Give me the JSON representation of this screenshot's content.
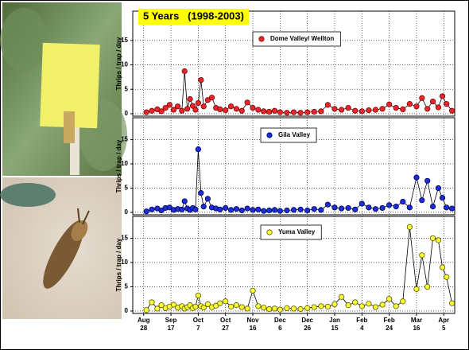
{
  "chart_data": [
    {
      "type": "line",
      "title": "5 Years   (1998-2003)",
      "ylabel": "Thrips / trap / day",
      "xlim": [
        -8,
        228
      ],
      "ylim": [
        -0.5,
        21
      ],
      "yticks": [
        0,
        5,
        10,
        15
      ],
      "grid": true,
      "series": [
        {
          "name": "Dome Valley/ Wellton",
          "color": "#e8262b",
          "edgecolor": "#7a0000",
          "x": [
            2,
            6,
            10,
            13,
            16,
            19,
            22,
            25,
            28,
            30,
            32,
            34,
            36,
            38,
            40,
            42,
            44,
            47,
            50,
            53,
            56,
            60,
            64,
            68,
            72,
            76,
            80,
            84,
            88,
            92,
            96,
            100,
            105,
            110,
            115,
            120,
            125,
            130,
            135,
            140,
            145,
            150,
            155,
            160,
            165,
            170,
            175,
            180,
            185,
            190,
            195,
            200,
            204,
            208,
            212,
            216,
            219,
            222,
            226
          ],
          "values": [
            0.3,
            0.6,
            0.9,
            0.5,
            1.2,
            1.8,
            0.8,
            1.5,
            0.6,
            8.7,
            1.0,
            3.0,
            1.6,
            0.8,
            2.2,
            6.9,
            1.5,
            2.8,
            3.3,
            1.2,
            0.9,
            0.7,
            1.5,
            1.0,
            0.6,
            2.3,
            1.2,
            0.8,
            0.5,
            0.4,
            0.6,
            0.3,
            0.2,
            0.3,
            0.2,
            0.3,
            0.4,
            0.5,
            1.8,
            1.0,
            0.8,
            1.2,
            0.6,
            0.5,
            0.7,
            0.8,
            1.0,
            1.9,
            1.2,
            0.9,
            2.0,
            1.5,
            3.2,
            1.0,
            2.5,
            1.3,
            3.6,
            2.0,
            0.6
          ]
        }
      ]
    },
    {
      "type": "line",
      "ylabel": "Thrips / trap / day",
      "xlim": [
        -8,
        228
      ],
      "ylim": [
        -0.5,
        19.5
      ],
      "yticks": [
        0,
        5,
        10,
        15
      ],
      "grid": true,
      "series": [
        {
          "name": "Gila Valley",
          "color": "#1a2fd6",
          "edgecolor": "#00005a",
          "x": [
            2,
            6,
            10,
            13,
            16,
            19,
            22,
            25,
            28,
            30,
            32,
            34,
            36,
            38,
            40,
            42,
            44,
            47,
            50,
            53,
            56,
            60,
            64,
            68,
            72,
            76,
            80,
            84,
            88,
            92,
            96,
            100,
            105,
            110,
            115,
            120,
            125,
            130,
            135,
            140,
            145,
            150,
            155,
            160,
            165,
            170,
            175,
            180,
            185,
            190,
            195,
            200,
            204,
            208,
            212,
            216,
            219,
            222,
            226
          ],
          "values": [
            0.2,
            0.6,
            0.8,
            0.4,
            0.9,
            1.0,
            0.5,
            0.7,
            0.6,
            2.3,
            0.8,
            0.5,
            0.9,
            0.6,
            13.0,
            4.0,
            1.2,
            2.8,
            1.0,
            0.8,
            0.6,
            0.9,
            0.5,
            0.7,
            0.4,
            0.8,
            0.5,
            0.6,
            0.3,
            0.4,
            0.5,
            0.3,
            0.4,
            0.5,
            0.6,
            0.4,
            0.7,
            0.5,
            1.6,
            1.0,
            0.8,
            0.9,
            0.6,
            1.8,
            1.0,
            0.7,
            0.9,
            1.5,
            1.2,
            2.2,
            1.0,
            7.2,
            2.5,
            6.5,
            1.2,
            5.0,
            3.0,
            1.0,
            0.8
          ]
        }
      ]
    },
    {
      "type": "line",
      "ylabel": "Thrips / trap / day",
      "xlim": [
        -8,
        228
      ],
      "ylim": [
        -0.5,
        19.5
      ],
      "yticks": [
        0,
        5,
        10,
        15
      ],
      "grid": true,
      "xticks": [
        {
          "value": 0,
          "label": "Aug 28"
        },
        {
          "value": 20,
          "label": "Sep 17"
        },
        {
          "value": 40,
          "label": "Oct 7"
        },
        {
          "value": 60,
          "label": "Oct 27"
        },
        {
          "value": 80,
          "label": "Nov 16"
        },
        {
          "value": 100,
          "label": "Dec 6"
        },
        {
          "value": 120,
          "label": "Dec 26"
        },
        {
          "value": 140,
          "label": "Jan 15"
        },
        {
          "value": 160,
          "label": "Feb 4"
        },
        {
          "value": 180,
          "label": "Feb 24"
        },
        {
          "value": 200,
          "label": "Mar 16"
        },
        {
          "value": 220,
          "label": "Apr 5"
        }
      ],
      "series": [
        {
          "name": "Yuma Valley",
          "color": "#ffff33",
          "edgecolor": "#555500",
          "x": [
            2,
            6,
            10,
            13,
            16,
            19,
            22,
            25,
            28,
            30,
            32,
            34,
            36,
            38,
            40,
            42,
            44,
            47,
            50,
            53,
            56,
            60,
            64,
            68,
            72,
            76,
            80,
            84,
            88,
            92,
            96,
            100,
            105,
            110,
            115,
            120,
            125,
            130,
            135,
            140,
            145,
            150,
            155,
            160,
            165,
            170,
            175,
            180,
            185,
            190,
            195,
            200,
            204,
            208,
            212,
            216,
            219,
            222,
            226
          ],
          "values": [
            0.2,
            1.8,
            0.5,
            1.2,
            0.6,
            0.9,
            1.3,
            0.7,
            1.0,
            0.5,
            0.8,
            1.2,
            0.6,
            0.9,
            3.2,
            1.0,
            0.7,
            1.4,
            0.8,
            1.1,
            1.6,
            2.0,
            0.9,
            1.2,
            0.8,
            0.5,
            4.2,
            1.0,
            0.7,
            0.4,
            0.5,
            0.3,
            0.6,
            0.5,
            0.4,
            0.6,
            0.8,
            1.0,
            0.9,
            1.4,
            2.9,
            1.2,
            1.8,
            1.0,
            1.5,
            0.8,
            1.3,
            2.5,
            1.0,
            2.0,
            17.3,
            4.5,
            11.5,
            5.0,
            15.0,
            14.6,
            9.0,
            7.0,
            1.6
          ]
        }
      ]
    }
  ]
}
